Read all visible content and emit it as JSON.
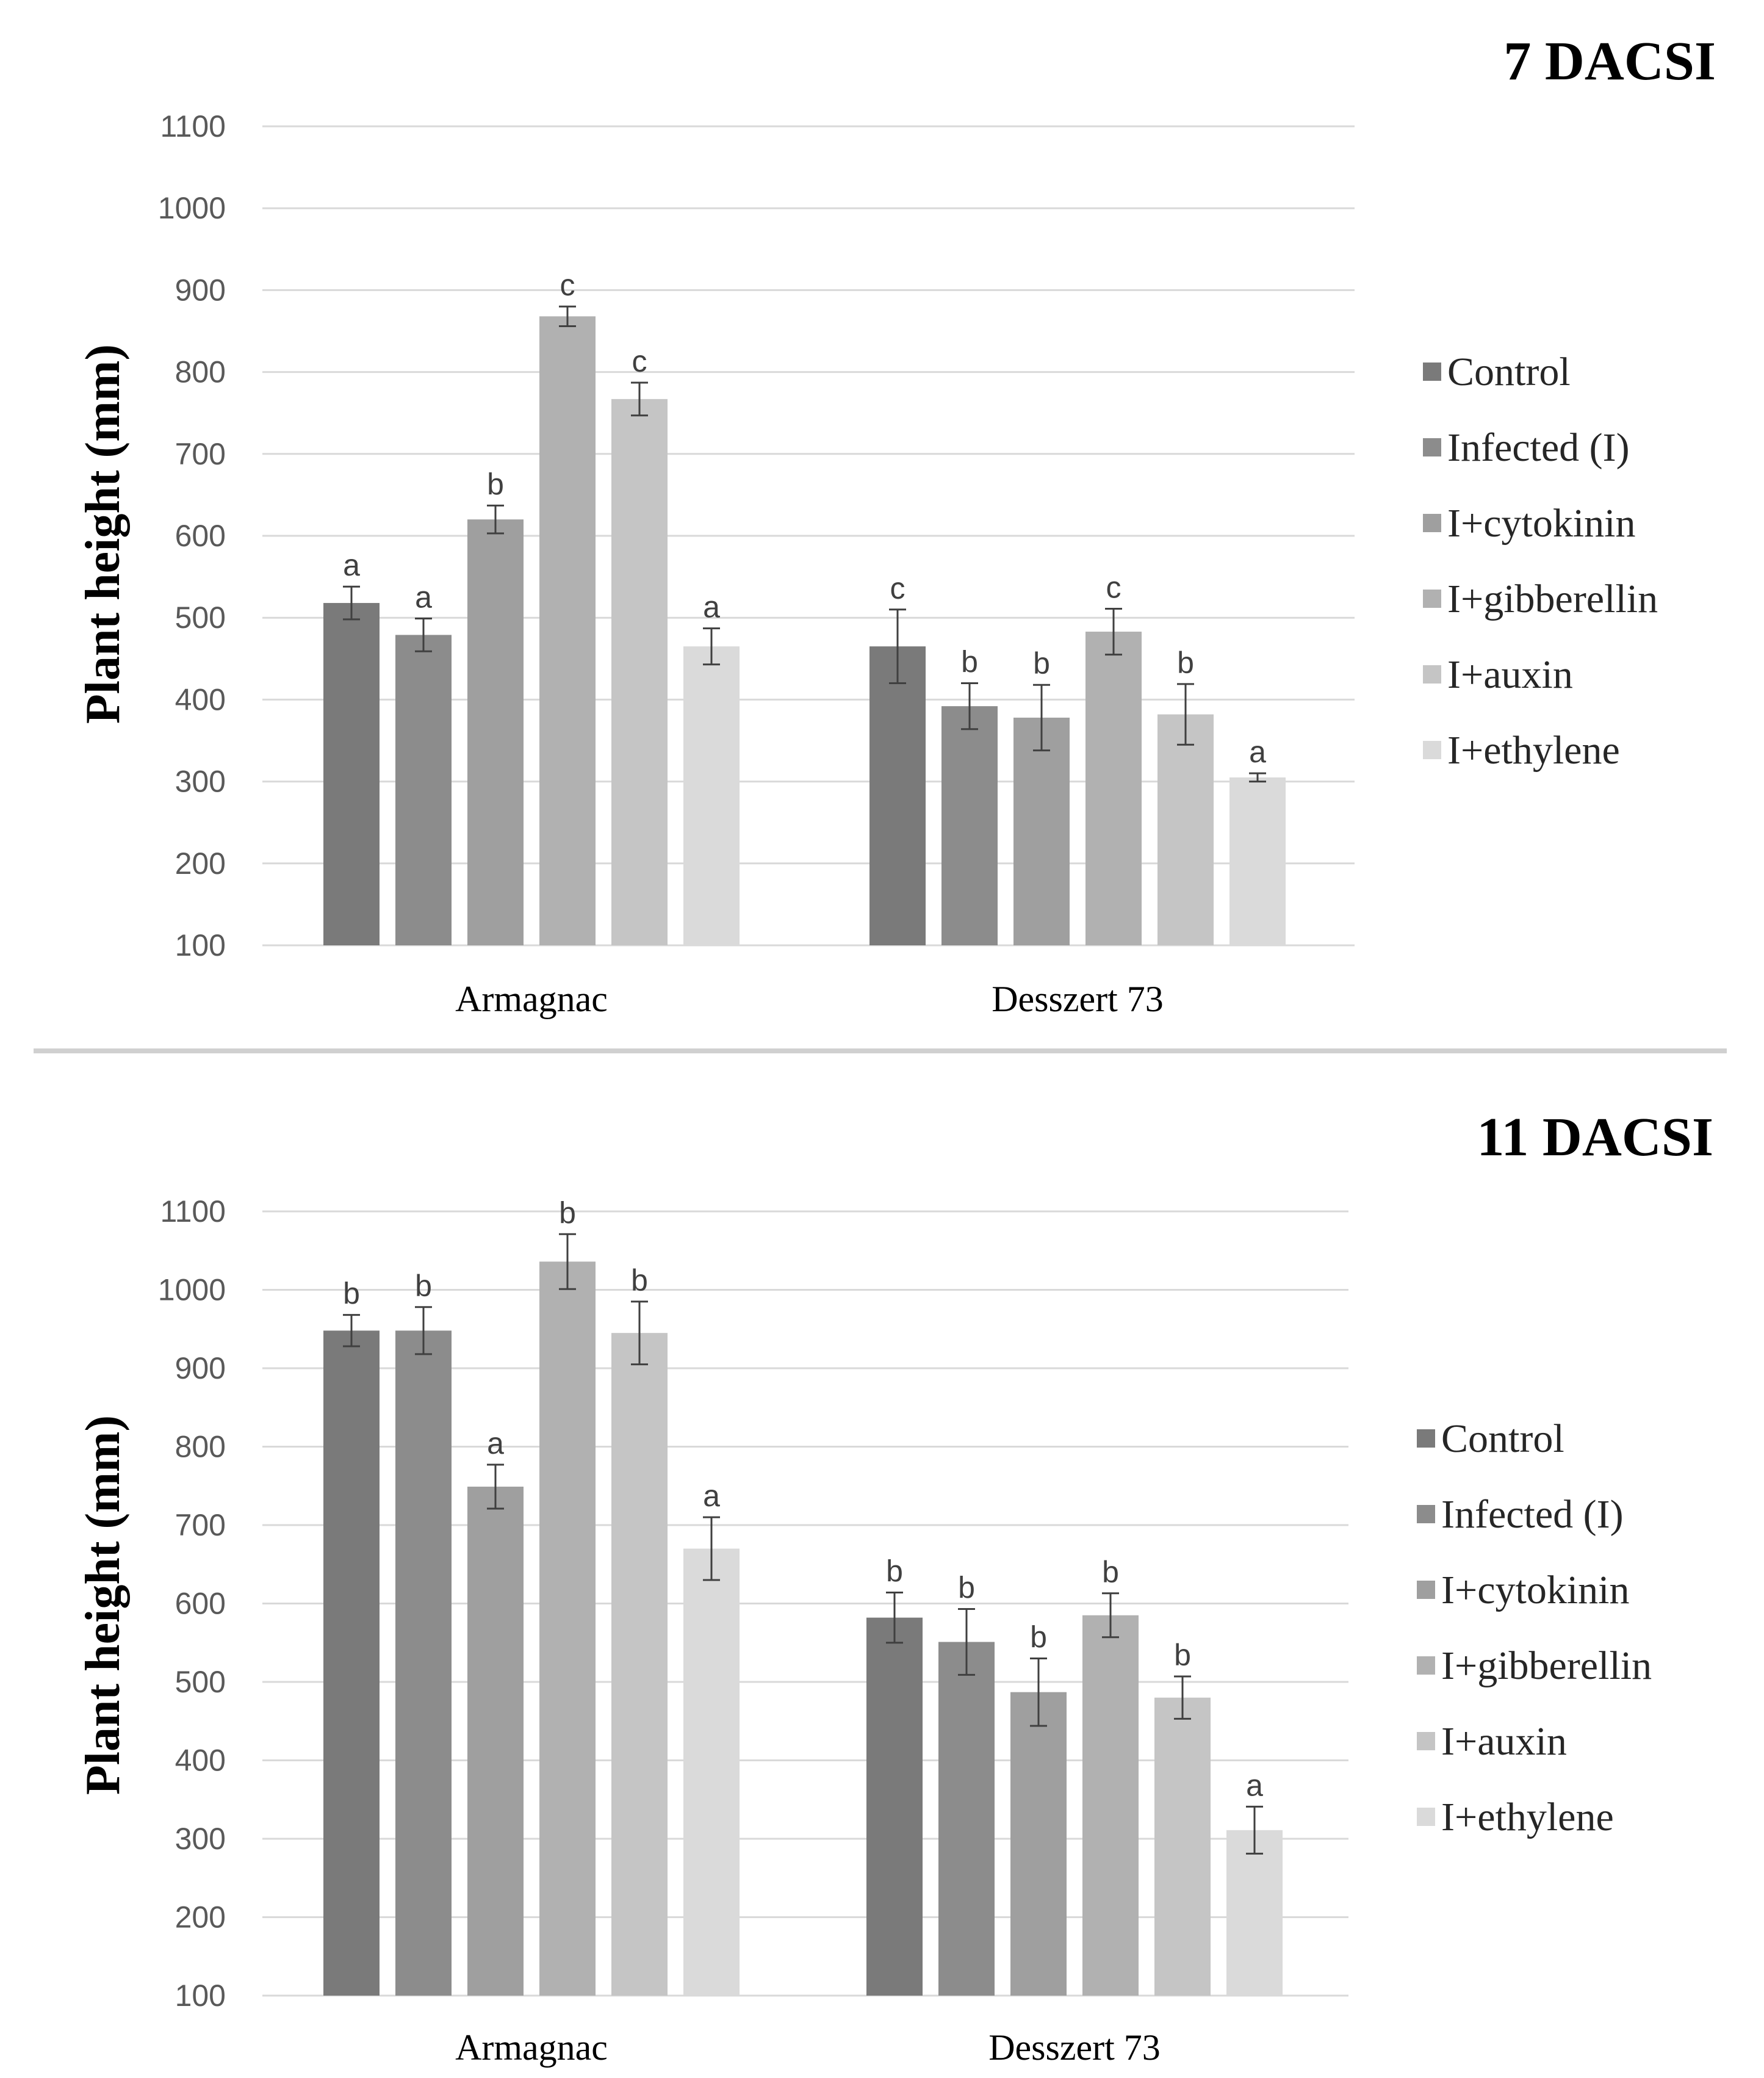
{
  "series_colors": [
    "#7a7a7a",
    "#8c8c8c",
    "#9f9f9f",
    "#b1b1b1",
    "#c5c5c5",
    "#dadada"
  ],
  "chart_data": [
    {
      "type": "bar",
      "title": "7 DACSI",
      "ylabel": "Plant height (mm)",
      "xlabel": "",
      "ylim": [
        100,
        1100
      ],
      "yticks": [
        100,
        200,
        300,
        400,
        500,
        600,
        700,
        800,
        900,
        1000,
        1100
      ],
      "categories": [
        "Armagnac",
        "Desszert 73"
      ],
      "series": [
        {
          "name": "Control",
          "values": [
            518,
            465
          ],
          "errors": [
            20,
            45
          ],
          "letters": [
            "a",
            "c"
          ]
        },
        {
          "name": "Infected (I)",
          "values": [
            479,
            392
          ],
          "errors": [
            20,
            28
          ],
          "letters": [
            "a",
            "b"
          ]
        },
        {
          "name": "I+cytokinin",
          "values": [
            620,
            378
          ],
          "errors": [
            17,
            40
          ],
          "letters": [
            "b",
            "b"
          ]
        },
        {
          "name": "I+gibberellin",
          "values": [
            868,
            483
          ],
          "errors": [
            12,
            28
          ],
          "letters": [
            "c",
            "c"
          ]
        },
        {
          "name": "I+auxin",
          "values": [
            767,
            382
          ],
          "errors": [
            20,
            37
          ],
          "letters": [
            "c",
            "b"
          ]
        },
        {
          "name": "I+ethylene",
          "values": [
            465,
            305
          ],
          "errors": [
            22,
            5
          ],
          "letters": [
            "a",
            "a"
          ]
        }
      ]
    },
    {
      "type": "bar",
      "title": "11 DACSI",
      "ylabel": "Plant height (mm)",
      "xlabel": "",
      "ylim": [
        100,
        1100
      ],
      "yticks": [
        100,
        200,
        300,
        400,
        500,
        600,
        700,
        800,
        900,
        1000,
        1100
      ],
      "categories": [
        "Armagnac",
        "Desszert 73"
      ],
      "series": [
        {
          "name": "Control",
          "values": [
            948,
            582
          ],
          "errors": [
            20,
            32
          ],
          "letters": [
            "b",
            "b"
          ]
        },
        {
          "name": "Infected (I)",
          "values": [
            948,
            551
          ],
          "errors": [
            30,
            42
          ],
          "letters": [
            "b",
            "b"
          ]
        },
        {
          "name": "I+cytokinin",
          "values": [
            749,
            487
          ],
          "errors": [
            28,
            43
          ],
          "letters": [
            "a",
            "b"
          ]
        },
        {
          "name": "I+gibberellin",
          "values": [
            1036,
            585
          ],
          "errors": [
            35,
            28
          ],
          "letters": [
            "b",
            "b"
          ]
        },
        {
          "name": "I+auxin",
          "values": [
            945,
            480
          ],
          "errors": [
            40,
            27
          ],
          "letters": [
            "b",
            "b"
          ]
        },
        {
          "name": "I+ethylene",
          "values": [
            670,
            311
          ],
          "errors": [
            40,
            30
          ],
          "letters": [
            "a",
            "a"
          ]
        }
      ]
    }
  ]
}
